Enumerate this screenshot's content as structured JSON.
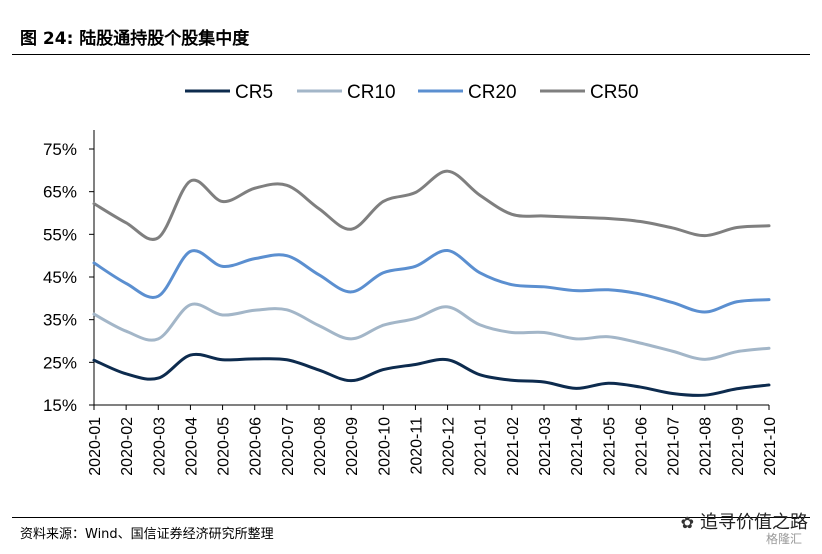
{
  "header": {
    "title": "图 24:  陆股通持股个股集中度"
  },
  "footer": {
    "source": "资料来源：Wind、国信证券经济研究所整理"
  },
  "watermark": {
    "icon": "wechat-icon",
    "text": "追寻价值之路",
    "text2": "格隆汇"
  },
  "colors": {
    "CR5": "#0d2b4e",
    "CR10": "#a3b6c8",
    "CR20": "#5b8fd0",
    "CR50": "#7f7f7f"
  },
  "chart_data": {
    "type": "line",
    "title": "",
    "xlabel": "",
    "ylabel": "",
    "ylim": [
      15,
      77
    ],
    "yticks": [
      "75%",
      "65%",
      "55%",
      "45%",
      "35%",
      "25%",
      "15%"
    ],
    "ytick_values": [
      75,
      65,
      55,
      45,
      35,
      25,
      15
    ],
    "grid": false,
    "legend": "top",
    "categories": [
      "2020-01",
      "2020-02",
      "2020-03",
      "2020-04",
      "2020-05",
      "2020-06",
      "2020-07",
      "2020-08",
      "2020-09",
      "2020-10",
      "2020-11",
      "2020-12",
      "2021-01",
      "2021-02",
      "2021-03",
      "2021-04",
      "2021-05",
      "2021-06",
      "2021-07",
      "2021-08",
      "2021-09",
      "2021-10"
    ],
    "series": [
      {
        "name": "CR5",
        "color": "#0d2b4e",
        "values": [
          25.5,
          22.3,
          21.3,
          26.7,
          25.6,
          25.8,
          25.6,
          23.2,
          20.7,
          23.3,
          24.5,
          25.6,
          22.1,
          20.8,
          20.4,
          18.9,
          20.1,
          19.2,
          17.7,
          17.3,
          18.8,
          19.7
        ]
      },
      {
        "name": "CR10",
        "color": "#a3b6c8",
        "values": [
          36.3,
          32.3,
          30.5,
          38.5,
          36.1,
          37.2,
          37.3,
          33.6,
          30.5,
          33.7,
          35.3,
          38.0,
          33.8,
          32.0,
          32.0,
          30.5,
          31.0,
          29.5,
          27.6,
          25.7,
          27.5,
          28.3
        ]
      },
      {
        "name": "CR20",
        "color": "#5b8fd0",
        "values": [
          48.3,
          43.5,
          40.5,
          51.0,
          47.5,
          49.3,
          50.0,
          45.5,
          41.5,
          46.0,
          47.5,
          51.2,
          46.0,
          43.2,
          42.7,
          41.8,
          42.0,
          41.0,
          39.0,
          36.8,
          39.2,
          39.7
        ]
      },
      {
        "name": "CR50",
        "color": "#7f7f7f",
        "values": [
          62.2,
          57.7,
          54.2,
          67.5,
          62.7,
          65.8,
          66.5,
          61.0,
          56.2,
          62.7,
          64.8,
          69.8,
          64.2,
          59.7,
          59.3,
          59.0,
          58.7,
          58.0,
          56.5,
          54.7,
          56.6,
          57.0
        ]
      }
    ]
  }
}
